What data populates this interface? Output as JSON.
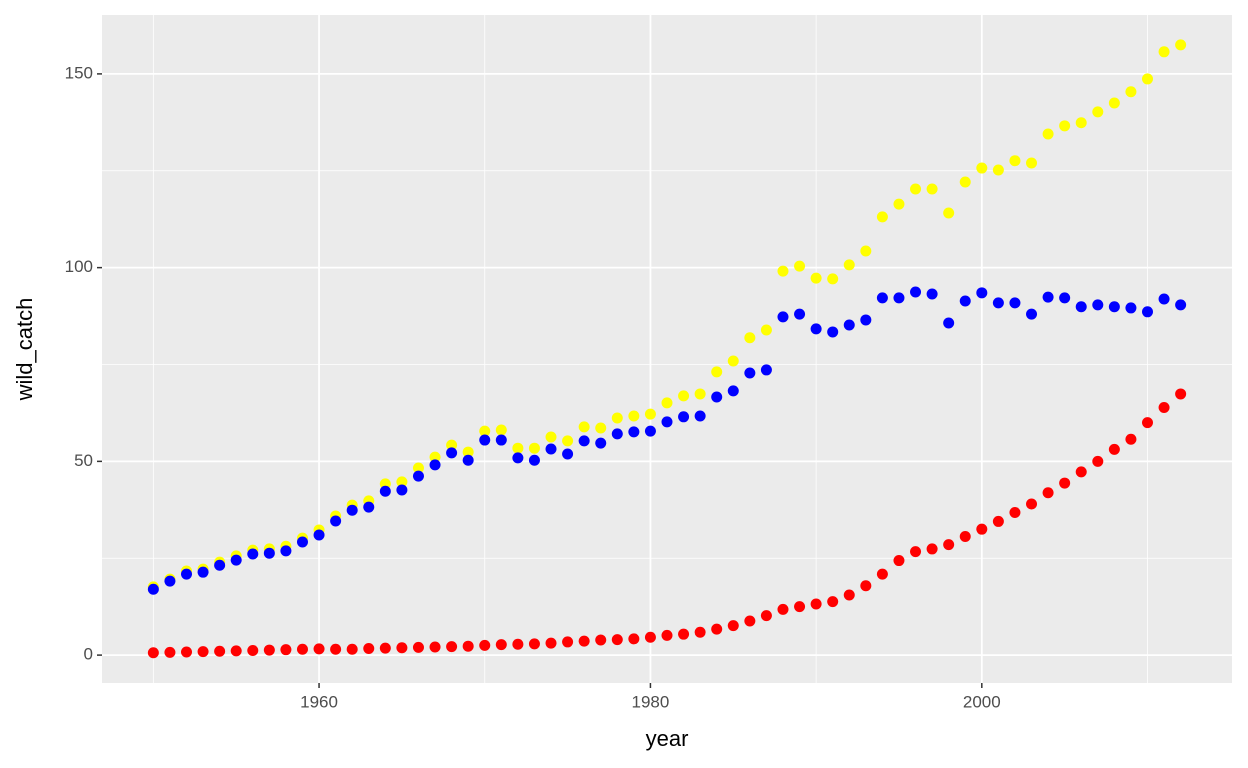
{
  "chart_data": {
    "type": "scatter",
    "x_label": "year",
    "y_label": "wild_catch",
    "x": [
      1950,
      1951,
      1952,
      1953,
      1954,
      1955,
      1956,
      1957,
      1958,
      1959,
      1960,
      1961,
      1962,
      1963,
      1964,
      1965,
      1966,
      1967,
      1968,
      1969,
      1970,
      1971,
      1972,
      1973,
      1974,
      1975,
      1976,
      1977,
      1978,
      1979,
      1980,
      1981,
      1982,
      1983,
      1984,
      1985,
      1986,
      1987,
      1988,
      1989,
      1990,
      1991,
      1992,
      1993,
      1994,
      1995,
      1996,
      1997,
      1998,
      1999,
      2000,
      2001,
      2002,
      2003,
      2004,
      2005,
      2006,
      2007,
      2008,
      2009,
      2010,
      2011,
      2012
    ],
    "series": [
      {
        "color": "#ffff00",
        "values": [
          17.6,
          19.6,
          21.7,
          22.2,
          24.0,
          25.6,
          27.1,
          27.4,
          28.1,
          30.2,
          32.3,
          35.9,
          38.7,
          39.8,
          44.2,
          44.7,
          48.3,
          51.1,
          54.2,
          52.4,
          57.8,
          58.1,
          53.4,
          53.4,
          56.3,
          55.3,
          58.9,
          58.6,
          61.2,
          61.7,
          62.2,
          65.1,
          66.9,
          67.4,
          73.1,
          75.9,
          81.9,
          83.9,
          99.1,
          100.4,
          97.3,
          97.1,
          100.7,
          104.3,
          113.1,
          116.4,
          120.3,
          120.3,
          114.1,
          122.1,
          125.7,
          125.2,
          127.6,
          127.0,
          134.5,
          136.6,
          137.4,
          140.2,
          142.5,
          145.4,
          148.7,
          155.7,
          157.5
        ]
      },
      {
        "color": "#0000ff",
        "values": [
          17.0,
          19.1,
          20.9,
          21.4,
          23.2,
          24.5,
          26.1,
          26.3,
          26.9,
          29.2,
          31.0,
          34.6,
          37.4,
          38.2,
          42.3,
          42.6,
          46.2,
          49.1,
          52.2,
          50.3,
          55.5,
          55.5,
          50.9,
          50.3,
          53.2,
          51.9,
          55.3,
          54.7,
          57.1,
          57.6,
          57.8,
          60.2,
          61.5,
          61.7,
          66.6,
          68.2,
          72.8,
          73.6,
          87.3,
          88.0,
          84.2,
          83.4,
          85.2,
          86.5,
          92.2,
          92.2,
          93.7,
          93.2,
          85.7,
          91.4,
          93.5,
          90.9,
          90.9,
          88.0,
          92.4,
          92.2,
          89.9,
          90.4,
          89.9,
          89.6,
          88.6,
          91.9,
          90.4
        ]
      },
      {
        "color": "#ff0000",
        "values": [
          0.6,
          0.7,
          0.8,
          0.9,
          1.0,
          1.1,
          1.2,
          1.3,
          1.4,
          1.5,
          1.6,
          1.5,
          1.5,
          1.7,
          1.8,
          1.9,
          2.0,
          2.1,
          2.2,
          2.3,
          2.5,
          2.7,
          2.8,
          2.9,
          3.1,
          3.4,
          3.6,
          3.9,
          4.0,
          4.2,
          4.6,
          5.1,
          5.4,
          5.9,
          6.7,
          7.6,
          8.8,
          10.2,
          11.8,
          12.5,
          13.2,
          13.8,
          15.5,
          17.9,
          20.9,
          24.4,
          26.7,
          27.4,
          28.5,
          30.6,
          32.5,
          34.5,
          36.8,
          39.0,
          41.9,
          44.4,
          47.3,
          50.0,
          53.1,
          55.7,
          60.0,
          63.9,
          67.4
        ]
      }
    ],
    "xlim": [
      1946.9,
      2015.1
    ],
    "xticks": [
      1960,
      1980,
      2000
    ],
    "xminor": [
      1950,
      1970,
      1990,
      2010
    ],
    "ylim": [
      -7.2,
      165.2
    ],
    "yticks": [
      0,
      50,
      100,
      150
    ],
    "yminor": [
      25,
      75,
      125
    ],
    "grid": true
  }
}
